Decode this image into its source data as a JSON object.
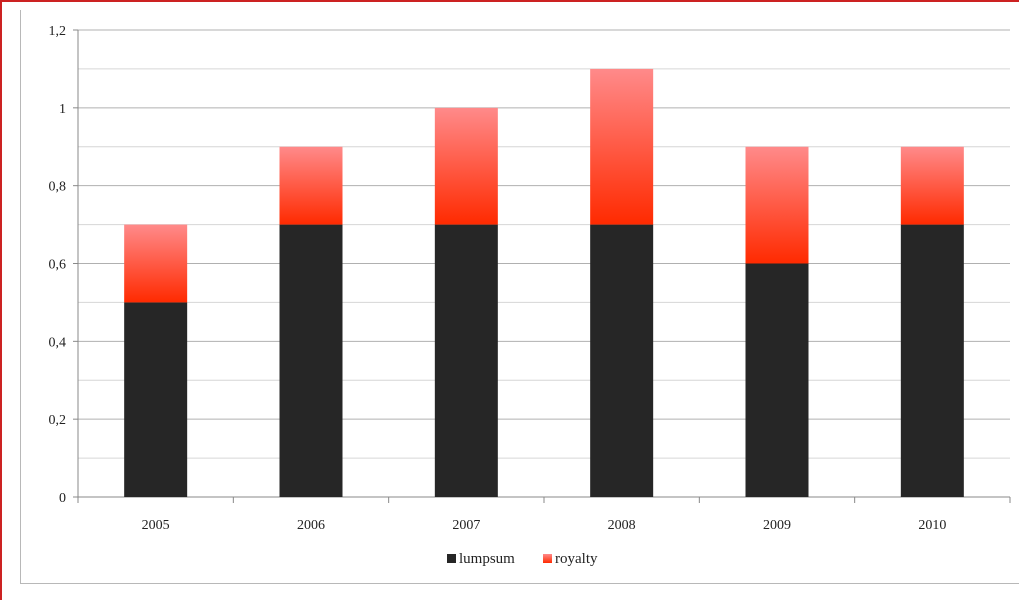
{
  "chart_data": {
    "type": "bar",
    "stacked": true,
    "categories": [
      "2005",
      "2006",
      "2007",
      "2008",
      "2009",
      "2010"
    ],
    "series": [
      {
        "name": "lumpsum",
        "values": [
          0.5,
          0.7,
          0.7,
          0.7,
          0.6,
          0.7
        ],
        "color": "#262626"
      },
      {
        "name": "royalty",
        "values": [
          0.2,
          0.2,
          0.3,
          0.4,
          0.3,
          0.2
        ],
        "color": "#ff2a00",
        "color_light": "#ff8a8a"
      }
    ],
    "ylim": [
      0,
      1.2
    ],
    "yticks": [
      "0",
      "0,2",
      "0,4",
      "0,6",
      "0,8",
      "1",
      "1,2"
    ],
    "ytick_values": [
      0,
      0.2,
      0.4,
      0.6,
      0.8,
      1.0,
      1.2
    ],
    "grid": true,
    "legend": "bottom-center"
  }
}
